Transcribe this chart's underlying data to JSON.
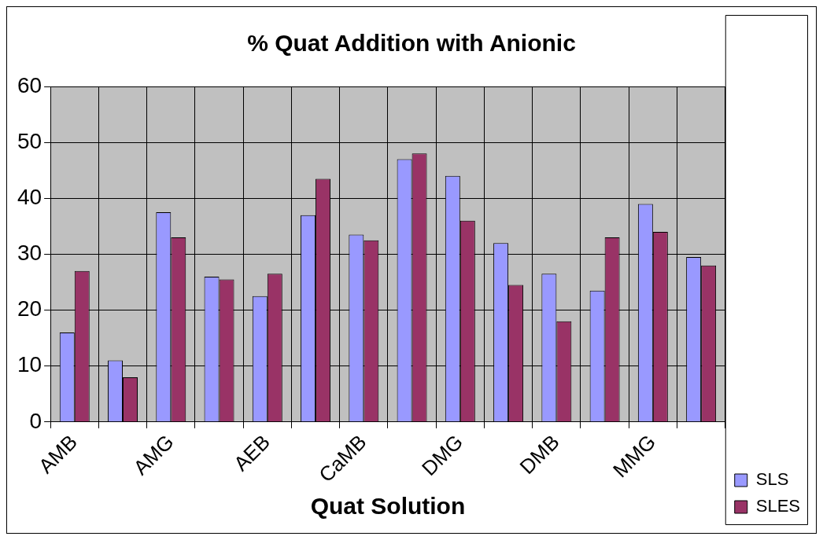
{
  "chart_data": {
    "type": "bar",
    "title": "% Quat Addition with Anionic",
    "xlabel": "Quat Solution",
    "categories": [
      "AMB",
      null,
      "AMG",
      null,
      "AEB",
      null,
      "CaMB",
      null,
      "DMG",
      null,
      "DMB",
      null,
      "MMG",
      null
    ],
    "series": [
      {
        "name": "SLS",
        "color": "#9999ff",
        "values": [
          16,
          11,
          37.5,
          26,
          22.5,
          37,
          33.5,
          47,
          44,
          32,
          26.5,
          23.5,
          39,
          29.5
        ]
      },
      {
        "name": "SLES",
        "color": "#993366",
        "values": [
          27,
          8,
          33,
          25.5,
          26.5,
          43.5,
          32.5,
          48,
          36,
          24.5,
          18,
          33,
          34,
          28
        ]
      }
    ],
    "ylim": [
      0,
      60
    ],
    "yticks": [
      0,
      10,
      20,
      30,
      40,
      50,
      60
    ],
    "grid": true,
    "legend": "bottom right"
  }
}
